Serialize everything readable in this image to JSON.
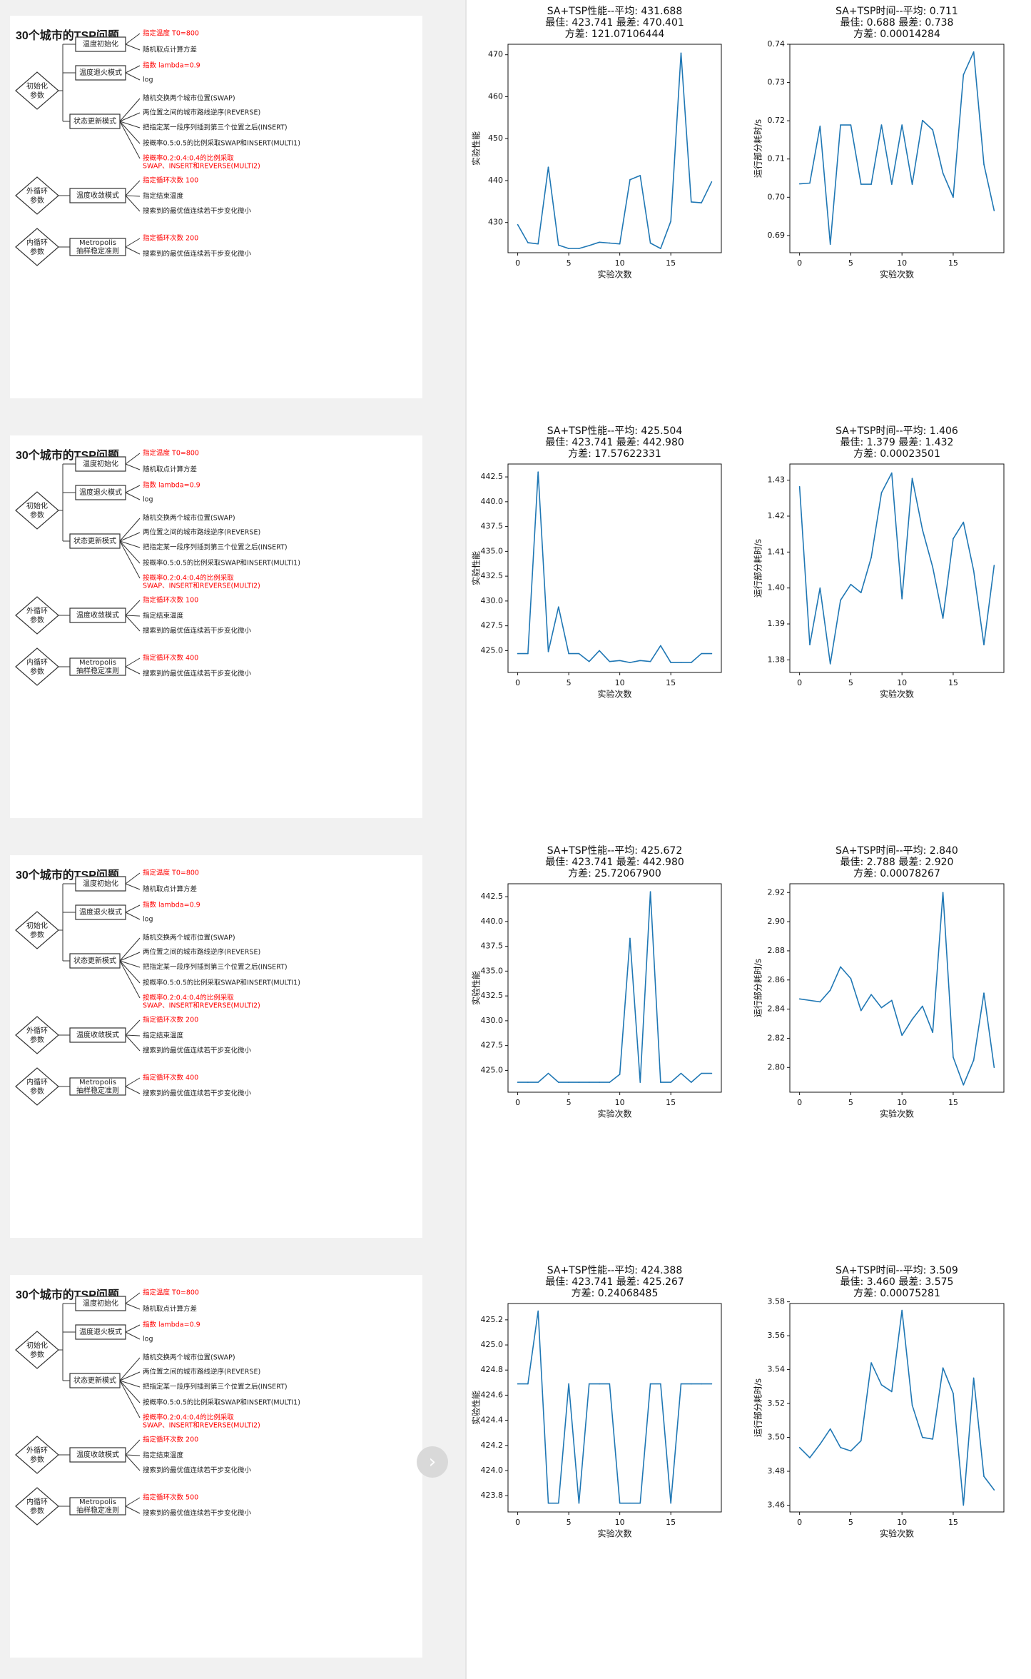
{
  "mindmap": {
    "title": "30个城市的TSP问题",
    "groups": {
      "init": "初始化\n参数",
      "outer": "外循环\n参数",
      "inner": "内循环\n参数"
    },
    "nodes": {
      "temp_init": "温度初始化",
      "anneal": "温度退火模式",
      "update": "状态更新模式",
      "converge": "温度收敛模式",
      "metropolis": "Metropolis\n抽样稳定准则"
    },
    "leaves": {
      "temp_init": [
        "指定温度 T0=800",
        "随机取点计算方差"
      ],
      "anneal": [
        "指数 lambda=0.9",
        "log"
      ],
      "update": [
        "随机交换两个城市位置(SWAP)",
        "两位置之间的城市路线逆序(REVERSE)",
        "把指定某一段序列插到第三个位置之后(INSERT)",
        "按概率0.5:0.5的比例采取SWAP和INSERT(MULTI1)",
        "按概率0.2:0.4:0.4的比例采取\nSWAP、INSERT和REVERSE(MULTI2)"
      ],
      "converge_tail": [
        "指定结束温度",
        "搜索到的最优值连续若干步变化微小"
      ],
      "metropolis_tail": "搜索到的最优值连续若干步变化微小"
    },
    "panels": [
      {
        "outer_loops": "指定循环次数  100",
        "inner_loops": "指定循环次数  200"
      },
      {
        "outer_loops": "指定循环次数  100",
        "inner_loops": "指定循环次数  400"
      },
      {
        "outer_loops": "指定循环次数  200",
        "inner_loops": "指定循环次数  400"
      },
      {
        "outer_loops": "指定循环次数  200",
        "inner_loops": "指定循环次数  500"
      }
    ]
  },
  "colors": {
    "highlight": "#ff0000",
    "line": "#1f77b4",
    "text": "#222222"
  },
  "chart_data": [
    {
      "type": "line",
      "title": [
        "SA+TSP性能--平均: 431.688",
        "最佳: 423.741  最差: 470.401",
        "方差: 121.07106444"
      ],
      "xlabel": "实验次数",
      "ylabel": "实验性能",
      "x": [
        0,
        1,
        2,
        3,
        4,
        5,
        6,
        7,
        8,
        9,
        10,
        11,
        12,
        13,
        14,
        15,
        16,
        17,
        18,
        19
      ],
      "values": [
        429.5,
        425.2,
        424.9,
        443.2,
        424.6,
        423.8,
        423.8,
        424.5,
        425.3,
        425.1,
        424.9,
        440.2,
        441.2,
        425.1,
        423.8,
        430.3,
        470.4,
        434.9,
        434.7,
        439.7
      ],
      "ylim": [
        422.8,
        472.5
      ],
      "yticks": [
        430,
        440,
        450,
        460,
        470
      ],
      "xlim": [
        -0.95,
        19.95
      ],
      "xticks": [
        0,
        5,
        10,
        15
      ]
    },
    {
      "type": "line",
      "title": [
        "SA+TSP时间--平均: 0.711",
        "最佳: 0.688  最差: 0.738",
        "方差: 0.00014284"
      ],
      "xlabel": "实验次数",
      "ylabel": "运行部分耗时/s",
      "x": [
        0,
        1,
        2,
        3,
        4,
        5,
        6,
        7,
        8,
        9,
        10,
        11,
        12,
        13,
        14,
        15,
        16,
        17,
        18,
        19
      ],
      "values": [
        0.7035,
        0.7037,
        0.7186,
        0.6877,
        0.7189,
        0.7189,
        0.7034,
        0.7034,
        0.7189,
        0.7034,
        0.7189,
        0.7034,
        0.7201,
        0.7176,
        0.7063,
        0.7,
        0.732,
        0.738,
        0.7086,
        0.6965
      ],
      "ylim": [
        0.6855,
        0.74
      ],
      "yticks": [
        0.69,
        0.7,
        0.71,
        0.72,
        0.73,
        0.74
      ],
      "xlim": [
        -0.95,
        19.95
      ],
      "xticks": [
        0,
        5,
        10,
        15
      ]
    },
    {
      "type": "line",
      "title": [
        "SA+TSP性能--平均: 425.504",
        "最佳: 423.741  最差: 442.980",
        "方差: 17.57622331"
      ],
      "xlabel": "实验次数",
      "ylabel": "实验性能",
      "x": [
        0,
        1,
        2,
        3,
        4,
        5,
        6,
        7,
        8,
        9,
        10,
        11,
        12,
        13,
        14,
        15,
        16,
        17,
        18,
        19
      ],
      "values": [
        424.7,
        424.7,
        443.0,
        424.9,
        429.4,
        424.7,
        424.7,
        423.9,
        425.0,
        423.9,
        424.0,
        423.8,
        424.0,
        423.9,
        425.5,
        423.8,
        423.8,
        423.8,
        424.7,
        424.7
      ],
      "ylim": [
        422.8,
        443.8
      ],
      "yticks": [
        425.0,
        427.5,
        430.0,
        432.5,
        435.0,
        437.5,
        440.0,
        442.5
      ],
      "xlim": [
        -0.95,
        19.95
      ],
      "xticks": [
        0,
        5,
        10,
        15
      ]
    },
    {
      "type": "line",
      "title": [
        "SA+TSP时间--平均: 1.406",
        "最佳: 1.379  最差: 1.432",
        "方差: 0.00023501"
      ],
      "xlabel": "实验次数",
      "ylabel": "运行部分耗时/s",
      "x": [
        0,
        1,
        2,
        3,
        4,
        5,
        6,
        7,
        8,
        9,
        10,
        11,
        12,
        13,
        14,
        15,
        16,
        17,
        18,
        19
      ],
      "values": [
        1.4282,
        1.3842,
        1.4,
        1.3789,
        1.3966,
        1.401,
        1.3987,
        1.4085,
        1.4265,
        1.432,
        1.397,
        1.4305,
        1.4162,
        1.4058,
        1.3916,
        1.4137,
        1.4183,
        1.4048,
        1.3842,
        1.4063
      ],
      "ylim": [
        1.3765,
        1.4345
      ],
      "yticks": [
        1.38,
        1.39,
        1.4,
        1.41,
        1.42,
        1.43
      ],
      "xlim": [
        -0.95,
        19.95
      ],
      "xticks": [
        0,
        5,
        10,
        15
      ]
    },
    {
      "type": "line",
      "title": [
        "SA+TSP性能--平均: 425.672",
        "最佳: 423.741  最差: 442.980",
        "方差: 25.72067900"
      ],
      "xlabel": "实验次数",
      "ylabel": "实验性能",
      "x": [
        0,
        1,
        2,
        3,
        4,
        5,
        6,
        7,
        8,
        9,
        10,
        11,
        12,
        13,
        14,
        15,
        16,
        17,
        18,
        19
      ],
      "values": [
        423.8,
        423.8,
        423.8,
        424.7,
        423.8,
        423.8,
        423.8,
        423.8,
        423.8,
        423.8,
        424.6,
        438.3,
        423.8,
        443.0,
        423.8,
        423.8,
        424.7,
        423.8,
        424.7,
        424.7
      ],
      "ylim": [
        422.8,
        443.8
      ],
      "yticks": [
        425.0,
        427.5,
        430.0,
        432.5,
        435.0,
        437.5,
        440.0,
        442.5
      ],
      "xlim": [
        -0.95,
        19.95
      ],
      "xticks": [
        0,
        5,
        10,
        15
      ]
    },
    {
      "type": "line",
      "title": [
        "SA+TSP时间--平均: 2.840",
        "最佳: 2.788  最差: 2.920",
        "方差: 0.00078267"
      ],
      "xlabel": "实验次数",
      "ylabel": "运行部分耗时/s",
      "x": [
        0,
        1,
        2,
        3,
        4,
        5,
        6,
        7,
        8,
        9,
        10,
        11,
        12,
        13,
        14,
        15,
        16,
        17,
        18,
        19
      ],
      "values": [
        2.847,
        2.846,
        2.845,
        2.853,
        2.869,
        2.861,
        2.839,
        2.85,
        2.841,
        2.846,
        2.822,
        2.833,
        2.842,
        2.824,
        2.92,
        2.807,
        2.788,
        2.805,
        2.851,
        2.8
      ],
      "ylim": [
        2.783,
        2.926
      ],
      "yticks": [
        2.8,
        2.82,
        2.84,
        2.86,
        2.88,
        2.9,
        2.92
      ],
      "xlim": [
        -0.95,
        19.95
      ],
      "xticks": [
        0,
        5,
        10,
        15
      ]
    },
    {
      "type": "line",
      "title": [
        "SA+TSP性能--平均: 424.388",
        "最佳: 423.741  最差: 425.267",
        "方差: 0.24068485"
      ],
      "xlabel": "实验次数",
      "ylabel": "实验性能",
      "x": [
        0,
        1,
        2,
        3,
        4,
        5,
        6,
        7,
        8,
        9,
        10,
        11,
        12,
        13,
        14,
        15,
        16,
        17,
        18,
        19
      ],
      "values": [
        424.69,
        424.69,
        425.27,
        423.74,
        423.74,
        424.69,
        423.74,
        424.69,
        424.69,
        424.69,
        423.74,
        423.74,
        423.74,
        424.69,
        424.69,
        423.74,
        424.69,
        424.69,
        424.69,
        424.69
      ],
      "ylim": [
        423.67,
        425.33
      ],
      "yticks": [
        423.8,
        424.0,
        424.2,
        424.4,
        424.6,
        424.8,
        425.0,
        425.2
      ],
      "xlim": [
        -0.95,
        19.95
      ],
      "xticks": [
        0,
        5,
        10,
        15
      ]
    },
    {
      "type": "line",
      "title": [
        "SA+TSP时间--平均: 3.509",
        "最佳: 3.460  最差: 3.575",
        "方差: 0.00075281"
      ],
      "xlabel": "实验次数",
      "ylabel": "运行部分耗时/s",
      "x": [
        0,
        1,
        2,
        3,
        4,
        5,
        6,
        7,
        8,
        9,
        10,
        11,
        12,
        13,
        14,
        15,
        16,
        17,
        18,
        19
      ],
      "values": [
        3.494,
        3.488,
        3.496,
        3.505,
        3.494,
        3.492,
        3.498,
        3.544,
        3.531,
        3.527,
        3.575,
        3.519,
        3.5,
        3.499,
        3.541,
        3.526,
        3.46,
        3.535,
        3.477,
        3.469
      ],
      "ylim": [
        3.456,
        3.579
      ],
      "yticks": [
        3.46,
        3.48,
        3.5,
        3.52,
        3.54,
        3.56,
        3.58
      ],
      "xlim": [
        -0.95,
        19.95
      ],
      "xticks": [
        0,
        5,
        10,
        15
      ]
    }
  ],
  "next_button": "›"
}
